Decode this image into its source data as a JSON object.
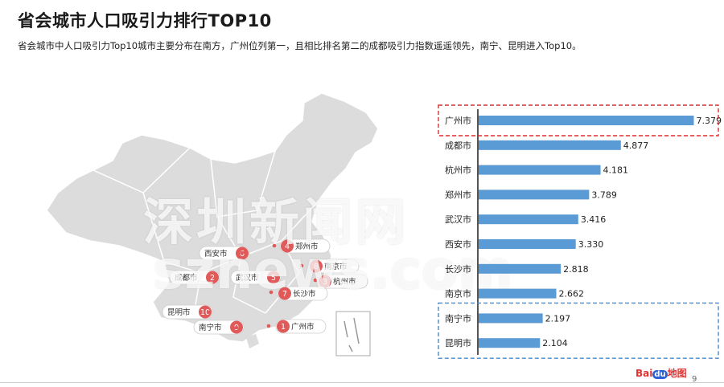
{
  "header": {
    "title": "省会城市人口吸引力排行TOP10",
    "subtitle": "省会城市中人口吸引力Top10城市主要分布在南方，广州位列第一，且相比排名第二的成都吸引力指数遥遥领先，南宁、昆明进入Top10。"
  },
  "map_labels": [
    {
      "rank": "6",
      "city": "西安市"
    },
    {
      "rank": "4",
      "city": "郑州市"
    },
    {
      "rank": "8",
      "city": "南京市"
    },
    {
      "rank": "2",
      "city": "成都市"
    },
    {
      "rank": "5",
      "city": "武汉市"
    },
    {
      "rank": "3",
      "city": "杭州市"
    },
    {
      "rank": "7",
      "city": "长沙市"
    },
    {
      "rank": "10",
      "city": "昆明市"
    },
    {
      "rank": "1",
      "city": "广州市"
    },
    {
      "rank": "9",
      "city": "南宁市"
    }
  ],
  "watermark": {
    "cn": "深圳新闻网",
    "en": "sznews.com"
  },
  "footer": {
    "page": "9",
    "logo_a": "Bai",
    "logo_b": "du",
    "logo_c": "地图"
  },
  "colors": {
    "bar": "#5b9bd5",
    "highlight_red": "#d9302e",
    "highlight_blue": "#4a88c9",
    "map_fill": "#d9d9d9",
    "marker": "#e05a5a"
  },
  "chart_data": {
    "type": "bar",
    "orientation": "horizontal",
    "categories": [
      "广州市",
      "成都市",
      "杭州市",
      "郑州市",
      "武汉市",
      "西安市",
      "长沙市",
      "南京市",
      "南宁市",
      "昆明市"
    ],
    "values": [
      7.379,
      4.877,
      4.181,
      3.789,
      3.416,
      3.33,
      2.818,
      2.662,
      2.197,
      2.104
    ],
    "value_labels": [
      "7.379",
      "4.877",
      "4.181",
      "3.789",
      "3.416",
      "3.330",
      "2.818",
      "2.662",
      "2.197",
      "2.104"
    ],
    "highlighted": {
      "red": [
        "广州市"
      ],
      "blue": [
        "南宁市",
        "昆明市"
      ]
    },
    "xlim": [
      0,
      7.8
    ],
    "grid": false,
    "legend": "none"
  }
}
